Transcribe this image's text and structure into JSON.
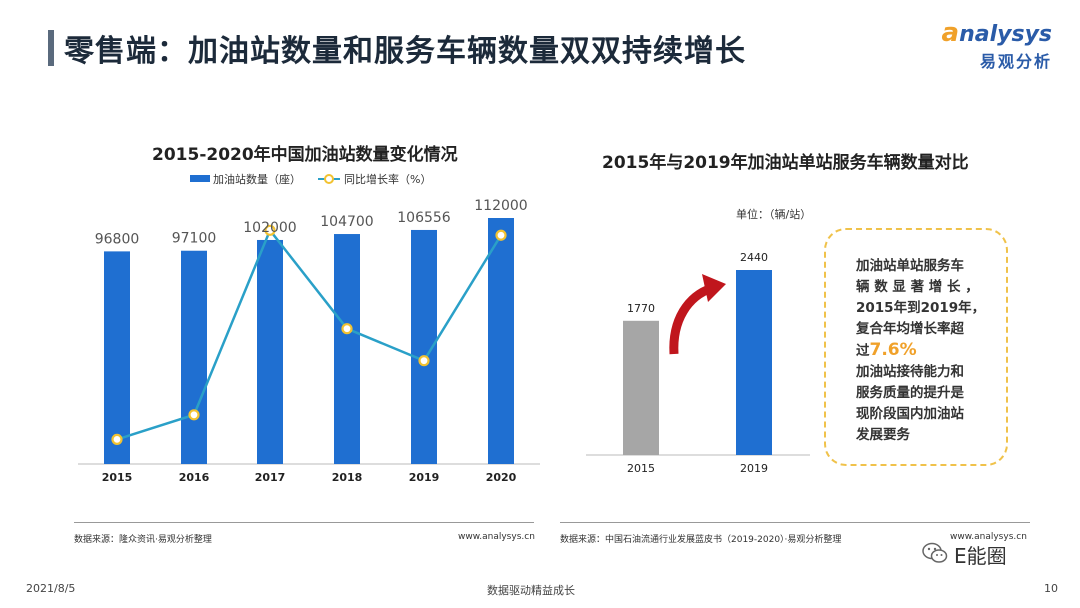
{
  "header": {
    "title": "零售端：加油站数量和服务车辆数量双双持续增长",
    "logo_en_first": "a",
    "logo_en_rest": "nalysys",
    "logo_cn": "易观分析"
  },
  "left_chart": {
    "title": "2015-2020年中国加油站数量变化情况",
    "legend_bar": "加油站数量（座）",
    "legend_line": "同比增长率（%）",
    "source": "数据来源：隆众资讯·易观分析整理",
    "website": "www.analysys.cn"
  },
  "right_chart": {
    "title": "2015年与2019年加油站单站服务车辆数量对比",
    "unit": "单位：（辆/站）",
    "source": "数据来源：中国石油流通行业发展蓝皮书（2019-2020）·易观分析整理",
    "website": "www.analysys.cn"
  },
  "callout": {
    "line1": "加油站单站服务车",
    "line2": "辆 数 显 著 增 长 ，",
    "line3": "2015年到2019年，",
    "line4": "复合年均增长率超",
    "line5_prefix": "过",
    "highlight": "7.6%",
    "line6": "加油站接待能力和",
    "line7": "服务质量的提升是",
    "line8": "现阶段国内加油站",
    "line9": "发展要务"
  },
  "footer": {
    "date": "2021/8/5",
    "slogan": "数据驱动精益成长",
    "page": "10",
    "wechat": "E能圈"
  },
  "colors": {
    "bar_blue": "#1f6fd1",
    "line_teal": "#2aa0c8",
    "marker_yellow": "#f2c230",
    "bar_gray": "#a6a6a6",
    "arrow_red": "#c0161d",
    "highlight": "#f0a12a"
  },
  "chart_data": [
    {
      "type": "bar",
      "categories": [
        "2015",
        "2016",
        "2017",
        "2018",
        "2019",
        "2020"
      ],
      "series": [
        {
          "name": "加油站数量（座）",
          "type": "bar",
          "values": [
            96800,
            97100,
            102000,
            104700,
            106556,
            112000
          ]
        },
        {
          "name": "同比增长率（%）",
          "type": "line",
          "relative_values": [
            0.1,
            0.2,
            0.95,
            0.55,
            0.42,
            0.93
          ]
        }
      ],
      "title": "2015-2020年中国加油站数量变化情况",
      "legend": "top"
    },
    {
      "type": "bar",
      "categories": [
        "2015",
        "2019"
      ],
      "values": [
        1770,
        2440
      ],
      "title": "2015年与2019年加油站单站服务车辆数量对比",
      "ylabel": "单位：（辆/站）"
    }
  ]
}
